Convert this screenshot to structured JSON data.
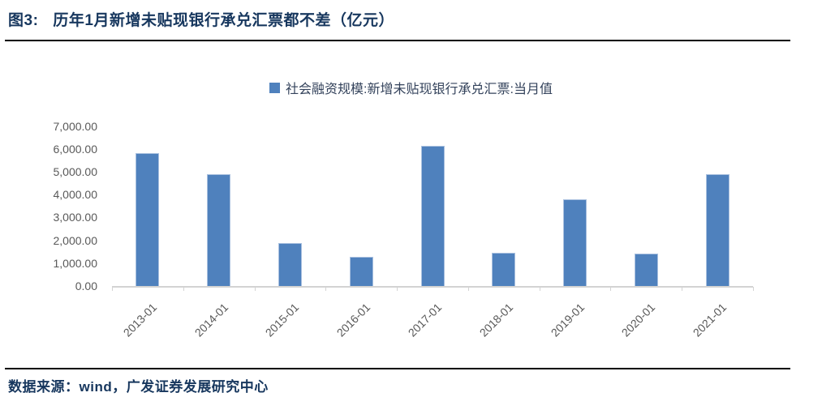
{
  "title": {
    "prefix": "图3:",
    "text": "历年1月新增未贴现银行承兑汇票都不差（亿元）"
  },
  "chart_data": {
    "type": "bar",
    "categories": [
      "2013-01",
      "2014-01",
      "2015-01",
      "2016-01",
      "2017-01",
      "2018-01",
      "2019-01",
      "2020-01",
      "2021-01"
    ],
    "series": [
      {
        "name": "社会融资规模:新增未贴现银行承兑汇票:当月值",
        "values": [
          5812,
          4901,
          1880,
          1280,
          6131,
          1437,
          3786,
          1403,
          4902
        ]
      }
    ],
    "title": "历年1月新增未贴现银行承兑汇票都不差（亿元）",
    "xlabel": "",
    "ylabel": "",
    "ylim": [
      0,
      7000
    ],
    "ytick_interval": 1000,
    "ytick_labels": [
      "0.00",
      "1,000.00",
      "2,000.00",
      "3,000.00",
      "4,000.00",
      "5,000.00",
      "6,000.00",
      "7,000.00"
    ],
    "grid": false,
    "legend_position": "top"
  },
  "footer": {
    "source_text": "数据来源：wind，广发证券发展研究中心"
  },
  "colors": {
    "title_navy": "#17375E",
    "legend_text": "#33425B",
    "axis_label_gray": "#595959",
    "axis_line_gray": "#D3D3D3",
    "rule_black": "#000000",
    "bar_fill": "#4F81BD",
    "bar_border": "#A9C0DF"
  },
  "icons": {
    "legend_swatch": "blue-square-swatch"
  }
}
